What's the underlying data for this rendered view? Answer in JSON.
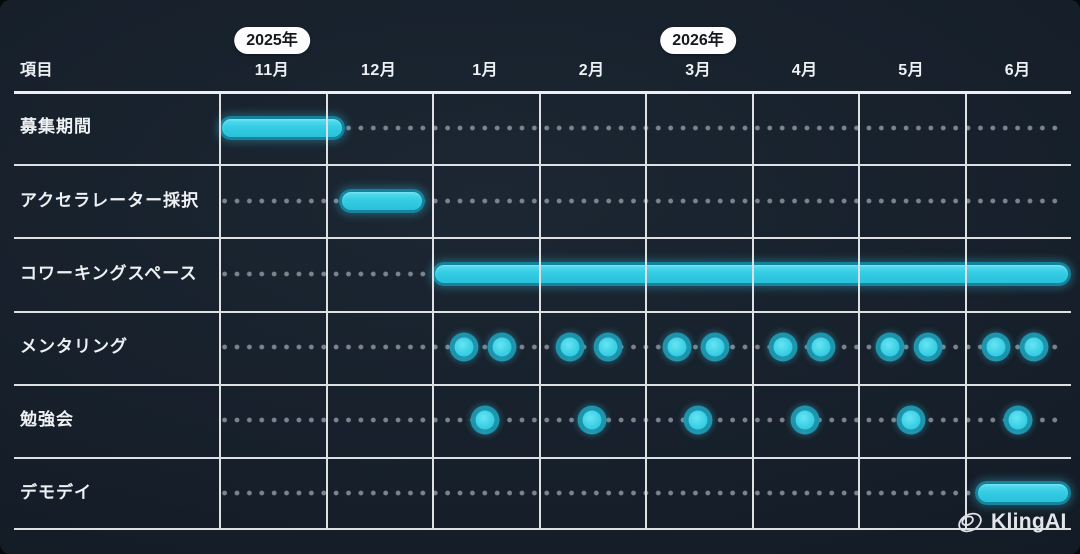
{
  "header": {
    "item_column_label": "項目",
    "months": [
      "11月",
      "12月",
      "1月",
      "2月",
      "3月",
      "4月",
      "5月",
      "6月"
    ],
    "year_badges": [
      {
        "label": "2025年",
        "above_month": "11月",
        "month_index": 0
      },
      {
        "label": "2026年",
        "above_month": "3月",
        "month_index": 4
      }
    ]
  },
  "watermark": {
    "label": "KlingAI",
    "icon": "kling-swirl-icon"
  },
  "colors": {
    "background": "#161f2a",
    "grid_line": "#dde1e4",
    "leader_dot": "#7d838d",
    "bar_cyan": "#36cde4",
    "bar_ring": "#117d97",
    "badge_bg": "#fdfdfe",
    "badge_text": "#15181d",
    "text": "#eef1f4"
  },
  "chart_data": {
    "type": "gantt",
    "title": "",
    "item_axis_label": "項目",
    "time_axis_labels": [
      "11月",
      "12月",
      "1月",
      "2月",
      "3月",
      "4月",
      "5月",
      "6月"
    ],
    "year_markers": [
      {
        "label": "2025年",
        "above_month": "11月"
      },
      {
        "label": "2026年",
        "above_month": "3月"
      }
    ],
    "legend": "none",
    "grid": true,
    "rows": [
      {
        "label": "募集期間",
        "kind": "bar",
        "start_col": 0.0,
        "end_col": 1.18,
        "months_covered": [
          "11月"
        ]
      },
      {
        "label": "アクセラレーター採択",
        "kind": "bar",
        "start_col": 1.13,
        "end_col": 1.93,
        "months_covered": [
          "12月"
        ]
      },
      {
        "label": "コワーキングスペース",
        "kind": "bar",
        "start_col": 2.0,
        "end_col": 8.0,
        "months_covered": [
          "1月",
          "2月",
          "3月",
          "4月",
          "5月",
          "6月"
        ]
      },
      {
        "label": "メンタリング",
        "kind": "dots",
        "dots_per_month": 2,
        "month_cols": [
          2,
          3,
          4,
          5,
          6,
          7
        ],
        "months_covered": [
          "1月",
          "2月",
          "3月",
          "4月",
          "5月",
          "6月"
        ]
      },
      {
        "label": "勉強会",
        "kind": "dots",
        "dots_per_month": 1,
        "month_cols": [
          2,
          3,
          4,
          5,
          6,
          7
        ],
        "months_covered": [
          "1月",
          "2月",
          "3月",
          "4月",
          "5月",
          "6月"
        ]
      },
      {
        "label": "デモデイ",
        "kind": "bar",
        "start_col": 7.1,
        "end_col": 8.0,
        "months_covered": [
          "6月"
        ]
      }
    ]
  }
}
